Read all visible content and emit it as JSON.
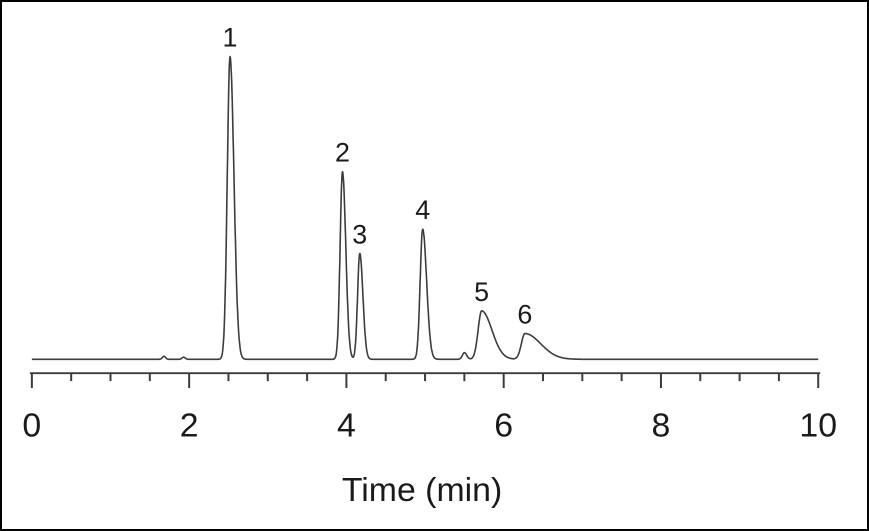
{
  "figure": {
    "background": "#ffffff",
    "border_color": "#000000"
  },
  "chart_data": {
    "type": "line",
    "title": "",
    "xlabel": "Time (min)",
    "ylabel": "",
    "xlim": [
      0,
      10
    ],
    "x_major_ticks": [
      0,
      2,
      4,
      6,
      8,
      10
    ],
    "x_minor_tick_step": 0.5,
    "grid": false,
    "legend": false,
    "line_color": "#3c3c3c",
    "axis_color": "#3c3c3c",
    "text_color": "#1a1a1a",
    "baseline": 0,
    "peaks": [
      {
        "label": "1",
        "time": 2.52,
        "height": 1.0,
        "sigma_left": 0.035,
        "sigma_right": 0.05
      },
      {
        "label": "2",
        "time": 3.95,
        "height": 0.62,
        "sigma_left": 0.03,
        "sigma_right": 0.042
      },
      {
        "label": "3",
        "time": 4.17,
        "height": 0.35,
        "sigma_left": 0.028,
        "sigma_right": 0.04
      },
      {
        "label": "4",
        "time": 4.97,
        "height": 0.43,
        "sigma_left": 0.032,
        "sigma_right": 0.05
      },
      {
        "label": "5",
        "time": 5.72,
        "height": 0.16,
        "sigma_left": 0.045,
        "sigma_right": 0.13
      },
      {
        "label": "6",
        "time": 6.27,
        "height": 0.085,
        "sigma_left": 0.045,
        "sigma_right": 0.2
      }
    ],
    "minor_features": [
      {
        "time": 1.68,
        "height": 0.01,
        "sigma_left": 0.02,
        "sigma_right": 0.02
      },
      {
        "time": 1.93,
        "height": 0.007,
        "sigma_left": 0.02,
        "sigma_right": 0.02
      },
      {
        "time": 5.5,
        "height": 0.022,
        "sigma_left": 0.025,
        "sigma_right": 0.03
      }
    ]
  }
}
